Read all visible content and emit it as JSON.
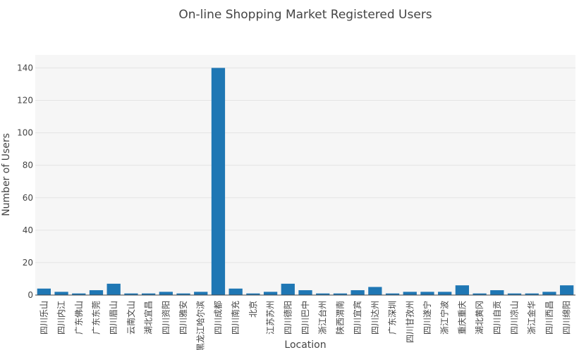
{
  "chart_data": {
    "type": "bar",
    "title": "On-line Shopping Market Registered Users",
    "xlabel": "Location",
    "ylabel": "Number of Users",
    "ylim": [
      0,
      148
    ],
    "yticks": [
      0,
      20,
      40,
      60,
      80,
      100,
      120,
      140
    ],
    "grid": true,
    "bar_color": "#1f77b4",
    "plot_background": "#f6f6f6",
    "categories": [
      "四川乐山",
      "四川内江",
      "广东佛山",
      "广东东莞",
      "四川眉山",
      "云南文山",
      "湖北宜昌",
      "四川资阳",
      "四川雅安",
      "黑龙江哈尔滨",
      "四川成都",
      "四川南充",
      "北京",
      "江苏苏州",
      "四川德阳",
      "四川巴中",
      "浙江台州",
      "陕西渭南",
      "四川宜宾",
      "四川达州",
      "广东深圳",
      "四川甘孜州",
      "四川遂宁",
      "浙江宁波",
      "重庆重庆",
      "湖北黄冈",
      "四川自贡",
      "四川凉山",
      "浙江金华",
      "四川西昌",
      "四川绵阳"
    ],
    "values": [
      4,
      2,
      1,
      3,
      7,
      1,
      1,
      2,
      1,
      2,
      140,
      4,
      1,
      2,
      7,
      3,
      1,
      1,
      3,
      5,
      1,
      2,
      2,
      2,
      6,
      1,
      3,
      1,
      1,
      2,
      6
    ]
  }
}
